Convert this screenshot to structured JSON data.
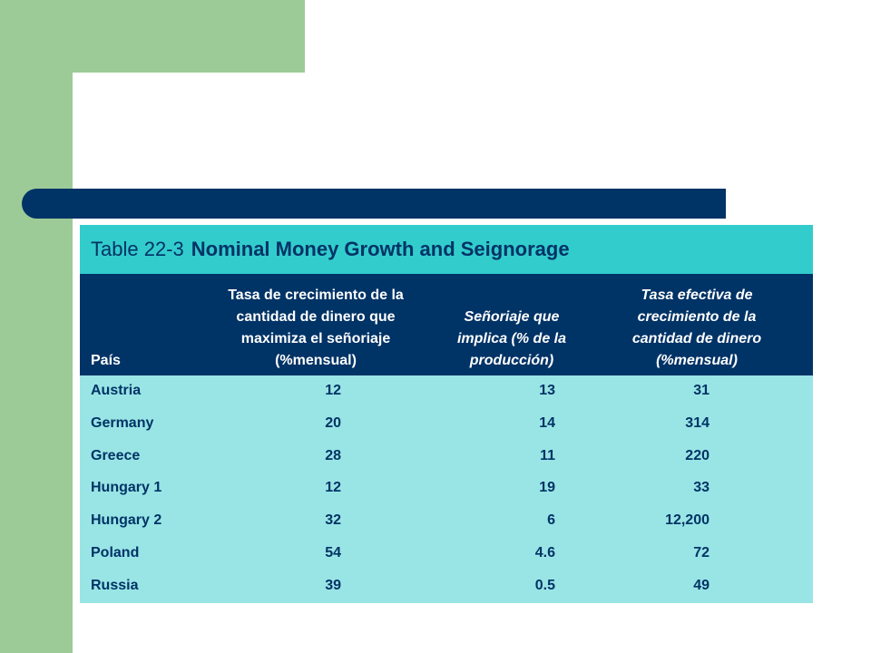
{
  "title": {
    "number": "Table 22-3",
    "text": "Nominal Money Growth and Seignorage"
  },
  "headers": {
    "country": "País",
    "col1": "Tasa de crecimiento de la cantidad de dinero que maximiza el señoriaje (%mensual)",
    "col2": "Señoriaje que implica (% de la producción)",
    "col3": "Tasa efectiva de crecimiento de la cantidad de dinero (%mensual)"
  },
  "rows": [
    {
      "country": "Austria",
      "col1": "12",
      "col2": "13",
      "col3": "31"
    },
    {
      "country": "Germany",
      "col1": "20",
      "col2": "14",
      "col3": "314"
    },
    {
      "country": "Greece",
      "col1": "28",
      "col2": "11",
      "col3": "220"
    },
    {
      "country": "Hungary 1",
      "col1": "12",
      "col2": "19",
      "col3": "33"
    },
    {
      "country": "Hungary 2",
      "col1": "32",
      "col2": "6",
      "col3": "12,200"
    },
    {
      "country": "Poland",
      "col1": "54",
      "col2": "4.6",
      "col3": "72"
    },
    {
      "country": "Russia",
      "col1": "39",
      "col2": "0.5",
      "col3": "49"
    }
  ],
  "colors": {
    "green": "#9dcb97",
    "navy": "#003366",
    "teal": "#33cccc",
    "light_teal": "#99e5e5"
  }
}
